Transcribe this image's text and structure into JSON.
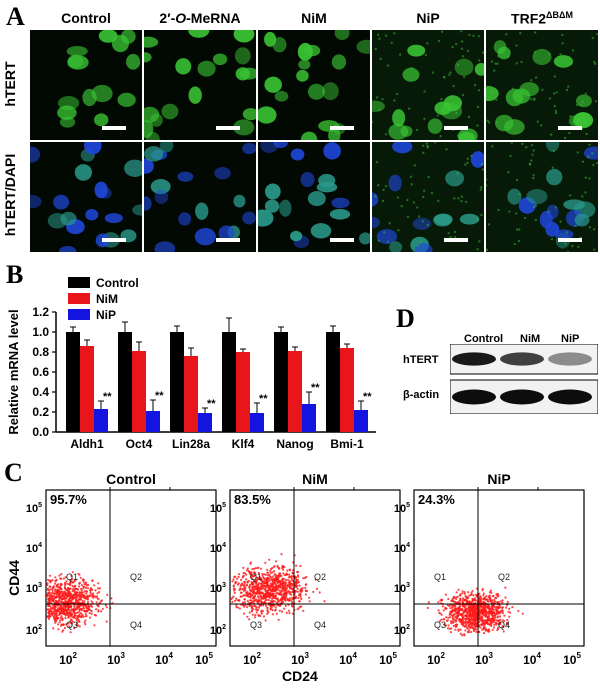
{
  "panels": {
    "A": "A",
    "B": "B",
    "C": "C",
    "D": "D"
  },
  "panelA": {
    "columns": [
      "Control",
      "2′-O-MeRNA",
      "NiM",
      "NiP",
      "TRF2ΔBΔM"
    ],
    "col_prefix_2": "2′-",
    "col_italic_2": "O",
    "col_suffix_2": "-MeRNA",
    "col_trf_base": "TRF2",
    "col_trf_sup": "ΔBΔM",
    "rows": [
      "hTERT",
      "hTERT/DAPI"
    ],
    "colors": {
      "green": "#39c233",
      "blue": "#1e47d8"
    }
  },
  "chart_data": {
    "type": "bar",
    "categories": [
      "Aldh1",
      "Oct4",
      "Lin28a",
      "Klf4",
      "Nanog",
      "Bmi-1"
    ],
    "series": [
      {
        "name": "Control",
        "values": [
          1.0,
          1.0,
          1.0,
          1.0,
          1.0,
          1.0
        ],
        "errors": [
          0.05,
          0.1,
          0.06,
          0.14,
          0.05,
          0.06
        ],
        "color": "#000000"
      },
      {
        "name": "NiM",
        "values": [
          0.86,
          0.81,
          0.76,
          0.8,
          0.81,
          0.84
        ],
        "errors": [
          0.06,
          0.09,
          0.08,
          0.03,
          0.04,
          0.04
        ],
        "color": "#e8161b"
      },
      {
        "name": "NiP",
        "values": [
          0.23,
          0.21,
          0.19,
          0.19,
          0.28,
          0.22
        ],
        "errors": [
          0.08,
          0.11,
          0.05,
          0.1,
          0.12,
          0.09
        ],
        "color": "#1414e0"
      }
    ],
    "significance": "**",
    "ylabel": "Relative mRNA level",
    "ylim": [
      0,
      1.2
    ],
    "yticks": [
      "0.0",
      "0.2",
      "0.4",
      "0.6",
      "0.8",
      "1.0",
      "1.2"
    ]
  },
  "panelD": {
    "lanes": [
      "Control",
      "NiM",
      "NiP"
    ],
    "rows": [
      "hTERT",
      "β-actin"
    ],
    "band_intensity": {
      "hTERT": [
        0.9,
        0.75,
        0.45
      ],
      "β-actin": [
        0.95,
        0.95,
        0.95
      ]
    }
  },
  "panelC": {
    "plots": [
      {
        "title": "Control",
        "q1_percent": "95.7%"
      },
      {
        "title": "NiM",
        "q1_percent": "83.5%"
      },
      {
        "title": "NiP",
        "q1_percent": "24.3%"
      }
    ],
    "quadrants": [
      "Q1",
      "Q2",
      "Q3",
      "Q4"
    ],
    "ticks_base": "10",
    "ticks_exp": [
      "2",
      "3",
      "4",
      "5"
    ],
    "ylabel": "CD44",
    "xlabel": "CD24",
    "dot_color": "#ff1a1a"
  }
}
